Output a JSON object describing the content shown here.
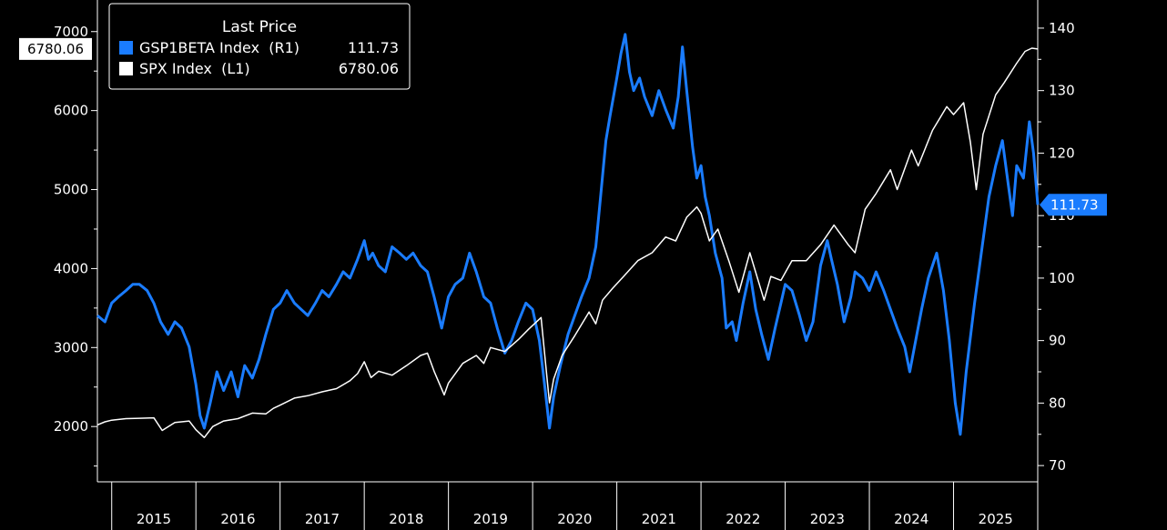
{
  "chart_data": {
    "type": "line",
    "legend": {
      "title": "Last Price",
      "placement": "top-left",
      "entries": [
        {
          "key": "gsp1beta",
          "label": "GSP1BETA Index  (R1)",
          "value": "111.73"
        },
        {
          "key": "spx",
          "label": "SPX Index  (L1)",
          "value": "6780.06"
        }
      ]
    },
    "x_axis": {
      "range": [
        2014.83,
        2026.0
      ],
      "year_labels": [
        "2015",
        "2016",
        "2017",
        "2018",
        "2019",
        "2020",
        "2021",
        "2022",
        "2023",
        "2024",
        "2025"
      ]
    },
    "left_axis": {
      "range": [
        1300,
        7400
      ],
      "ticks": [
        2000,
        3000,
        4000,
        5000,
        6000,
        7000
      ],
      "tick_labels": [
        "2000",
        "3000",
        "4000",
        "5000",
        "6000",
        "7000"
      ]
    },
    "right_axis": {
      "range": [
        67.4,
        144.5
      ],
      "ticks": [
        70,
        80,
        90,
        100,
        110,
        120,
        130,
        140
      ],
      "tick_labels": [
        "70",
        "80",
        "90",
        "100",
        "110",
        "120",
        "130",
        "140"
      ]
    },
    "last_value_labels": {
      "left": "6780.06",
      "right": "111.73"
    },
    "grid": false,
    "series": [
      {
        "key": "gsp1beta",
        "name": "GSP1BETA Index",
        "axis": "right",
        "color": "#1a7cff",
        "points": [
          [
            2014.83,
            94
          ],
          [
            2014.92,
            93
          ],
          [
            2015.0,
            96
          ],
          [
            2015.08,
            97
          ],
          [
            2015.17,
            98
          ],
          [
            2015.25,
            99
          ],
          [
            2015.33,
            99
          ],
          [
            2015.42,
            98
          ],
          [
            2015.5,
            96
          ],
          [
            2015.58,
            93
          ],
          [
            2015.67,
            91
          ],
          [
            2015.75,
            93
          ],
          [
            2015.83,
            92
          ],
          [
            2015.92,
            89
          ],
          [
            2016.0,
            83
          ],
          [
            2016.05,
            78
          ],
          [
            2016.1,
            76
          ],
          [
            2016.17,
            80
          ],
          [
            2016.25,
            85
          ],
          [
            2016.33,
            82
          ],
          [
            2016.42,
            85
          ],
          [
            2016.5,
            81
          ],
          [
            2016.58,
            86
          ],
          [
            2016.67,
            84
          ],
          [
            2016.75,
            87
          ],
          [
            2016.83,
            91
          ],
          [
            2016.92,
            95
          ],
          [
            2017.0,
            96
          ],
          [
            2017.08,
            98
          ],
          [
            2017.17,
            96
          ],
          [
            2017.25,
            95
          ],
          [
            2017.33,
            94
          ],
          [
            2017.42,
            96
          ],
          [
            2017.5,
            98
          ],
          [
            2017.58,
            97
          ],
          [
            2017.67,
            99
          ],
          [
            2017.75,
            101
          ],
          [
            2017.83,
            100
          ],
          [
            2017.92,
            103
          ],
          [
            2018.0,
            106
          ],
          [
            2018.05,
            103
          ],
          [
            2018.1,
            104
          ],
          [
            2018.17,
            102
          ],
          [
            2018.25,
            101
          ],
          [
            2018.33,
            105
          ],
          [
            2018.42,
            104
          ],
          [
            2018.5,
            103
          ],
          [
            2018.58,
            104
          ],
          [
            2018.67,
            102
          ],
          [
            2018.75,
            101
          ],
          [
            2018.83,
            97
          ],
          [
            2018.92,
            92
          ],
          [
            2019.0,
            97
          ],
          [
            2019.08,
            99
          ],
          [
            2019.17,
            100
          ],
          [
            2019.25,
            104
          ],
          [
            2019.33,
            101
          ],
          [
            2019.42,
            97
          ],
          [
            2019.5,
            96
          ],
          [
            2019.58,
            92
          ],
          [
            2019.67,
            88
          ],
          [
            2019.75,
            90
          ],
          [
            2019.83,
            93
          ],
          [
            2019.92,
            96
          ],
          [
            2020.0,
            95
          ],
          [
            2020.08,
            90
          ],
          [
            2020.15,
            82
          ],
          [
            2020.2,
            76
          ],
          [
            2020.25,
            81
          ],
          [
            2020.33,
            86
          ],
          [
            2020.42,
            91
          ],
          [
            2020.5,
            94
          ],
          [
            2020.58,
            97
          ],
          [
            2020.67,
            100
          ],
          [
            2020.75,
            105
          ],
          [
            2020.8,
            112
          ],
          [
            2020.87,
            122
          ],
          [
            2020.92,
            126
          ],
          [
            2021.0,
            132
          ],
          [
            2021.05,
            136
          ],
          [
            2021.1,
            139
          ],
          [
            2021.15,
            133
          ],
          [
            2021.2,
            130
          ],
          [
            2021.27,
            132
          ],
          [
            2021.33,
            129
          ],
          [
            2021.42,
            126
          ],
          [
            2021.5,
            130
          ],
          [
            2021.58,
            127
          ],
          [
            2021.67,
            124
          ],
          [
            2021.73,
            129
          ],
          [
            2021.78,
            137
          ],
          [
            2021.83,
            130
          ],
          [
            2021.9,
            121
          ],
          [
            2021.95,
            116
          ],
          [
            2022.0,
            118
          ],
          [
            2022.05,
            113
          ],
          [
            2022.1,
            110
          ],
          [
            2022.17,
            104
          ],
          [
            2022.25,
            100
          ],
          [
            2022.3,
            92
          ],
          [
            2022.37,
            93
          ],
          [
            2022.42,
            90
          ],
          [
            2022.5,
            96
          ],
          [
            2022.58,
            101
          ],
          [
            2022.65,
            95
          ],
          [
            2022.72,
            91
          ],
          [
            2022.8,
            87
          ],
          [
            2022.88,
            92
          ],
          [
            2022.95,
            96
          ],
          [
            2023.0,
            99
          ],
          [
            2023.08,
            98
          ],
          [
            2023.17,
            94
          ],
          [
            2023.25,
            90
          ],
          [
            2023.33,
            93
          ],
          [
            2023.42,
            102
          ],
          [
            2023.5,
            106
          ],
          [
            2023.55,
            103
          ],
          [
            2023.62,
            99
          ],
          [
            2023.7,
            93
          ],
          [
            2023.78,
            97
          ],
          [
            2023.83,
            101
          ],
          [
            2023.92,
            100
          ],
          [
            2024.0,
            98
          ],
          [
            2024.08,
            101
          ],
          [
            2024.17,
            98
          ],
          [
            2024.25,
            95
          ],
          [
            2024.33,
            92
          ],
          [
            2024.42,
            89
          ],
          [
            2024.48,
            85
          ],
          [
            2024.55,
            90
          ],
          [
            2024.62,
            95
          ],
          [
            2024.7,
            100
          ],
          [
            2024.8,
            104
          ],
          [
            2024.88,
            98
          ],
          [
            2024.95,
            90
          ],
          [
            2025.02,
            80
          ],
          [
            2025.08,
            75
          ],
          [
            2025.15,
            85
          ],
          [
            2025.25,
            96
          ],
          [
            2025.33,
            104
          ],
          [
            2025.42,
            113
          ],
          [
            2025.5,
            118
          ],
          [
            2025.58,
            122
          ],
          [
            2025.65,
            115
          ],
          [
            2025.7,
            110
          ],
          [
            2025.75,
            118
          ],
          [
            2025.83,
            116
          ],
          [
            2025.9,
            125
          ],
          [
            2025.95,
            120
          ],
          [
            2026.0,
            111.73
          ]
        ]
      },
      {
        "key": "spx",
        "name": "SPX Index",
        "axis": "left",
        "color": "#ffffff",
        "points": [
          [
            2014.83,
            2020
          ],
          [
            2014.92,
            2060
          ],
          [
            2015.0,
            2080
          ],
          [
            2015.17,
            2100
          ],
          [
            2015.33,
            2105
          ],
          [
            2015.5,
            2110
          ],
          [
            2015.6,
            1950
          ],
          [
            2015.75,
            2050
          ],
          [
            2015.92,
            2070
          ],
          [
            2016.0,
            1960
          ],
          [
            2016.1,
            1860
          ],
          [
            2016.2,
            2000
          ],
          [
            2016.33,
            2070
          ],
          [
            2016.5,
            2100
          ],
          [
            2016.67,
            2170
          ],
          [
            2016.83,
            2160
          ],
          [
            2016.92,
            2230
          ],
          [
            2017.0,
            2270
          ],
          [
            2017.17,
            2360
          ],
          [
            2017.33,
            2390
          ],
          [
            2017.5,
            2440
          ],
          [
            2017.67,
            2480
          ],
          [
            2017.83,
            2580
          ],
          [
            2017.92,
            2670
          ],
          [
            2018.0,
            2820
          ],
          [
            2018.08,
            2620
          ],
          [
            2018.17,
            2700
          ],
          [
            2018.33,
            2650
          ],
          [
            2018.5,
            2770
          ],
          [
            2018.67,
            2900
          ],
          [
            2018.75,
            2930
          ],
          [
            2018.83,
            2700
          ],
          [
            2018.95,
            2400
          ],
          [
            2019.0,
            2550
          ],
          [
            2019.17,
            2800
          ],
          [
            2019.33,
            2900
          ],
          [
            2019.42,
            2800
          ],
          [
            2019.5,
            3000
          ],
          [
            2019.67,
            2950
          ],
          [
            2019.83,
            3100
          ],
          [
            2019.95,
            3230
          ],
          [
            2020.1,
            3380
          ],
          [
            2020.2,
            2300
          ],
          [
            2020.25,
            2600
          ],
          [
            2020.35,
            2900
          ],
          [
            2020.5,
            3150
          ],
          [
            2020.67,
            3450
          ],
          [
            2020.75,
            3300
          ],
          [
            2020.83,
            3600
          ],
          [
            2020.95,
            3750
          ],
          [
            2021.08,
            3900
          ],
          [
            2021.25,
            4100
          ],
          [
            2021.42,
            4200
          ],
          [
            2021.58,
            4400
          ],
          [
            2021.7,
            4350
          ],
          [
            2021.83,
            4650
          ],
          [
            2021.95,
            4780
          ],
          [
            2022.0,
            4700
          ],
          [
            2022.1,
            4350
          ],
          [
            2022.2,
            4500
          ],
          [
            2022.33,
            4100
          ],
          [
            2022.45,
            3700
          ],
          [
            2022.58,
            4200
          ],
          [
            2022.75,
            3600
          ],
          [
            2022.83,
            3900
          ],
          [
            2022.95,
            3850
          ],
          [
            2023.08,
            4100
          ],
          [
            2023.25,
            4100
          ],
          [
            2023.42,
            4300
          ],
          [
            2023.58,
            4550
          ],
          [
            2023.75,
            4300
          ],
          [
            2023.83,
            4200
          ],
          [
            2023.95,
            4750
          ],
          [
            2024.08,
            4950
          ],
          [
            2024.25,
            5250
          ],
          [
            2024.33,
            5000
          ],
          [
            2024.5,
            5500
          ],
          [
            2024.58,
            5300
          ],
          [
            2024.75,
            5750
          ],
          [
            2024.92,
            6050
          ],
          [
            2025.0,
            5950
          ],
          [
            2025.12,
            6100
          ],
          [
            2025.2,
            5600
          ],
          [
            2025.27,
            5000
          ],
          [
            2025.35,
            5700
          ],
          [
            2025.5,
            6200
          ],
          [
            2025.6,
            6350
          ],
          [
            2025.75,
            6600
          ],
          [
            2025.85,
            6750
          ],
          [
            2025.93,
            6790
          ],
          [
            2026.0,
            6780.06
          ]
        ]
      }
    ]
  }
}
